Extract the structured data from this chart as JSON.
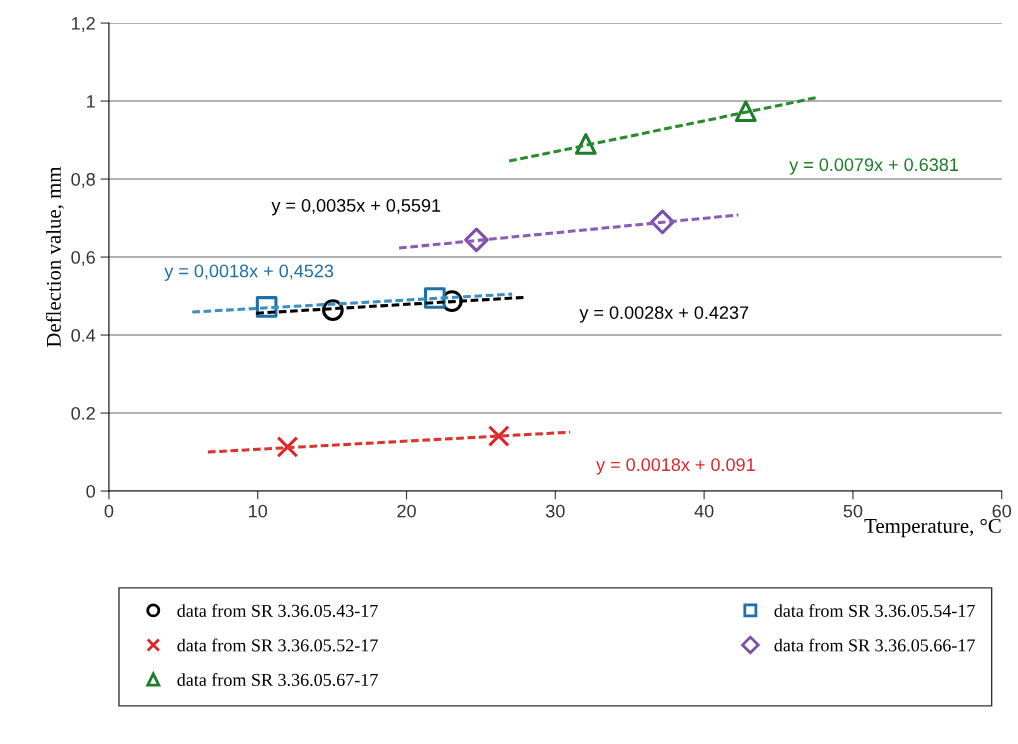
{
  "chart_data": {
    "type": "scatter",
    "xlabel": "Temperature, °C",
    "ylabel": "Deflection value, mm",
    "xlim": [
      0,
      60
    ],
    "xticks": [
      0,
      10,
      20,
      30,
      40,
      50,
      60
    ],
    "ylim": [
      0,
      1.2
    ],
    "yticks": [
      0,
      {
        "value": 0.2,
        "label": "0.2"
      },
      {
        "value": 0.4,
        "label": "0.4"
      },
      {
        "value": 0.6,
        "label": "0,6"
      },
      {
        "value": 0.8,
        "label": "0,8"
      },
      1,
      {
        "value": 1.2,
        "label": "1,2"
      }
    ],
    "grid": "y",
    "legend": "bottom",
    "series": [
      {
        "name": "data from SR 3.36.05.43-17",
        "marker": "circle",
        "color": "#000000",
        "x": [
          15.05,
          23.05
        ],
        "values": [
          0.464,
          0.487
        ]
      },
      {
        "name": "data from SR 3.36.05.54-17",
        "marker": "square",
        "color": "#1f6fa8",
        "x": [
          10.6,
          21.9
        ],
        "values": [
          0.472,
          0.495
        ]
      },
      {
        "name": "data from SR 3.36.05.52-17",
        "marker": "cross",
        "color": "#e0242a",
        "x": [
          12.0,
          26.2
        ],
        "values": [
          0.113,
          0.141
        ]
      },
      {
        "name": "data from SR 3.36.05.66-17",
        "marker": "diamond",
        "color": "#7f4fa8",
        "x": [
          24.7,
          37.2
        ],
        "values": [
          0.644,
          0.69
        ]
      },
      {
        "name": "data from SR 3.36.05.67-17",
        "marker": "triangle",
        "color": "#1e7d2a",
        "x": [
          32.05,
          42.8
        ],
        "values": [
          0.89,
          0.974
        ]
      },
      {
        "type": "line",
        "line_style": "dashed",
        "color": "#000000",
        "x": [
          9.9,
          28.1
        ],
        "values": [
          0.456,
          0.497
        ]
      },
      {
        "type": "line",
        "line_style": "dashed",
        "color": "#3a8fc4",
        "x": [
          5.6,
          27.1
        ],
        "values": [
          0.459,
          0.505
        ]
      },
      {
        "type": "line",
        "line_style": "dashed",
        "color": "#d9342e",
        "x": [
          6.65,
          31.0
        ],
        "values": [
          0.1,
          0.151
        ]
      },
      {
        "type": "line",
        "line_style": "dashed",
        "color": "#8a5cb8",
        "x": [
          19.5,
          42.3
        ],
        "values": [
          0.623,
          0.708
        ]
      },
      {
        "type": "line",
        "line_style": "dashed",
        "color": "#2a8a30",
        "x": [
          26.9,
          47.7
        ],
        "values": [
          0.846,
          1.01
        ]
      }
    ],
    "annotations": [
      "y = 0,0035x + 0,5591",
      "y = 0,0018x + 0,4523",
      "y = 0.0028x + 0.4237",
      "y = 0.0079x + 0.6381",
      "y = 0.0018x + 0.091"
    ]
  }
}
